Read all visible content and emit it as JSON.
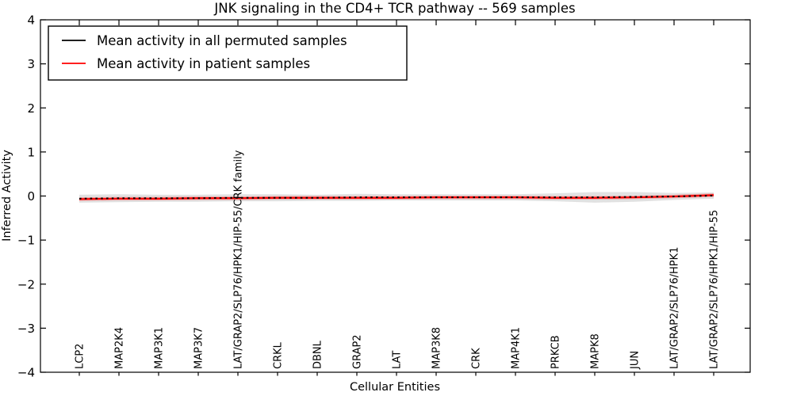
{
  "chart_data": {
    "type": "line",
    "title": "JNK signaling in the CD4+ TCR pathway -- 569 samples",
    "xlabel": "Cellular Entities",
    "ylabel": "Inferred Activity",
    "ylim": [
      -4,
      4
    ],
    "grid": false,
    "legend_position": "upper left",
    "frame_color": "#000000",
    "yticks": [
      {
        "value": -4,
        "label": "−4"
      },
      {
        "value": -3,
        "label": "−3"
      },
      {
        "value": -2,
        "label": "−2"
      },
      {
        "value": -1,
        "label": "−1"
      },
      {
        "value": 0,
        "label": "0"
      },
      {
        "value": 1,
        "label": "1"
      },
      {
        "value": 2,
        "label": "2"
      },
      {
        "value": 3,
        "label": "3"
      },
      {
        "value": 4,
        "label": "4"
      }
    ],
    "categories": [
      "LCP2",
      "MAP2K4",
      "MAP3K1",
      "MAP3K7",
      "LAT/GRAP2/SLP76/HPK1/HIP-55/CRK family",
      "CRKL",
      "DBNL",
      "GRAP2",
      "LAT",
      "MAP3K8",
      "CRK",
      "MAP4K1",
      "PRKCB",
      "MAPK8",
      "JUN",
      "LAT/GRAP2/SLP76/HPK1",
      "LAT/GRAP2/SLP76/HPK1/HIP-55"
    ],
    "series": [
      {
        "name": "Mean activity in all permuted samples",
        "color": "#000000",
        "line_style": "dotted",
        "values": [
          -0.06,
          -0.05,
          -0.05,
          -0.05,
          -0.04,
          -0.04,
          -0.04,
          -0.03,
          -0.03,
          -0.03,
          -0.03,
          -0.03,
          -0.03,
          -0.03,
          -0.02,
          -0.01,
          0.01
        ],
        "band_lower": [
          -0.15,
          -0.14,
          -0.13,
          -0.13,
          -0.12,
          -0.12,
          -0.11,
          -0.11,
          -0.1,
          -0.1,
          -0.1,
          -0.1,
          -0.12,
          -0.15,
          -0.13,
          -0.09,
          -0.06
        ],
        "band_upper": [
          0.03,
          0.04,
          0.03,
          0.03,
          0.04,
          0.04,
          0.03,
          0.05,
          0.04,
          0.04,
          0.04,
          0.04,
          0.06,
          0.09,
          0.09,
          0.07,
          0.08
        ],
        "band_color": "#c9c9c9",
        "band_opacity": 0.55
      },
      {
        "name": "Mean activity in patient samples",
        "color": "#ff0000",
        "line_style": "solid",
        "values": [
          -0.07,
          -0.06,
          -0.06,
          -0.05,
          -0.05,
          -0.04,
          -0.04,
          -0.04,
          -0.04,
          -0.03,
          -0.03,
          -0.03,
          -0.04,
          -0.04,
          -0.03,
          -0.01,
          0.02
        ],
        "band_lower": [
          -0.11,
          -0.1,
          -0.1,
          -0.09,
          -0.09,
          -0.08,
          -0.08,
          -0.08,
          -0.08,
          -0.07,
          -0.07,
          -0.07,
          -0.08,
          -0.08,
          -0.07,
          -0.05,
          -0.02
        ],
        "band_upper": [
          -0.03,
          -0.02,
          -0.02,
          -0.01,
          -0.01,
          0.0,
          0.0,
          0.0,
          0.0,
          0.01,
          0.01,
          0.01,
          0.0,
          0.0,
          0.01,
          0.03,
          0.06
        ],
        "band_color": "#f08080",
        "band_opacity": 0.55
      }
    ]
  }
}
